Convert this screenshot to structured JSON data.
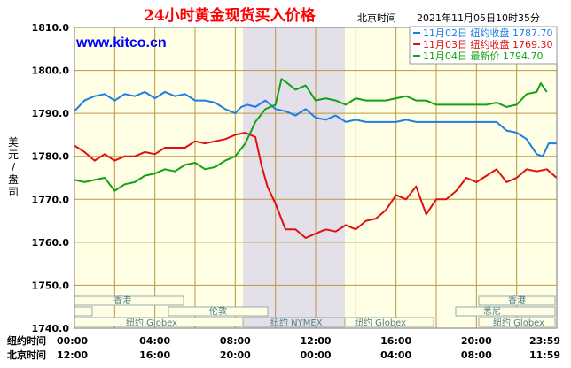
{
  "title": "24小时黄金现货买入价格",
  "timezone_label": "北京时间",
  "timestamp": "2021年11月05日10时35分",
  "website": "www.kitco.cn",
  "ylabel": "美元/盎司",
  "row_labels": {
    "ny": "纽约时间",
    "bj": "北京时间"
  },
  "sessions": {
    "hongkong": "香港",
    "london": "伦敦",
    "sydney": "悉尼",
    "globex": "纽约 Globex",
    "nymex": "纽约 NYMEX"
  },
  "chart_data": {
    "type": "line",
    "ylim": [
      1740,
      1810
    ],
    "yticks": [
      "1810.0",
      "1800.0",
      "1790.0",
      "1780.0",
      "1770.0",
      "1760.0",
      "1750.0",
      "1740.0"
    ],
    "xticks_ny": [
      "00:00",
      "04:00",
      "08:00",
      "12:00",
      "16:00",
      "20:00",
      "23:59"
    ],
    "xticks_bj": [
      "12:00",
      "16:00",
      "20:00",
      "00:00",
      "04:00",
      "08:00",
      "11:59"
    ],
    "series": [
      {
        "name": "11月02日",
        "label": "纽约收盘",
        "value": "1787.70",
        "color": "#1e7ee6",
        "points": [
          [
            0,
            1790.5
          ],
          [
            0.5,
            1793
          ],
          [
            1,
            1794
          ],
          [
            1.5,
            1794.5
          ],
          [
            2,
            1793
          ],
          [
            2.5,
            1794.5
          ],
          [
            3,
            1794
          ],
          [
            3.5,
            1795
          ],
          [
            4,
            1793.5
          ],
          [
            4.5,
            1795
          ],
          [
            5,
            1794
          ],
          [
            5.5,
            1794.5
          ],
          [
            6,
            1793
          ],
          [
            6.5,
            1793
          ],
          [
            7,
            1792.5
          ],
          [
            7.5,
            1791
          ],
          [
            8,
            1790
          ],
          [
            8.3,
            1791.5
          ],
          [
            8.6,
            1792
          ],
          [
            9,
            1791.5
          ],
          [
            9.5,
            1793
          ],
          [
            10,
            1791
          ],
          [
            10.5,
            1790.5
          ],
          [
            11,
            1789.5
          ],
          [
            11.5,
            1791
          ],
          [
            12,
            1789
          ],
          [
            12.5,
            1788.5
          ],
          [
            13,
            1789.5
          ],
          [
            13.5,
            1788
          ],
          [
            14,
            1788.5
          ],
          [
            14.5,
            1788
          ],
          [
            15,
            1788
          ],
          [
            15.5,
            1788
          ],
          [
            16,
            1788
          ],
          [
            16.5,
            1788.5
          ],
          [
            17,
            1788
          ],
          [
            17.5,
            1788
          ],
          [
            18,
            1788
          ],
          [
            18.5,
            1788
          ],
          [
            19,
            1788
          ],
          [
            19.5,
            1788
          ],
          [
            20,
            1788
          ],
          [
            20.5,
            1788
          ],
          [
            21,
            1788
          ],
          [
            21.5,
            1786
          ],
          [
            22,
            1785.5
          ],
          [
            22.5,
            1784
          ],
          [
            23,
            1780.5
          ],
          [
            23.3,
            1780
          ],
          [
            23.6,
            1783
          ],
          [
            23.99,
            1783
          ]
        ]
      },
      {
        "name": "11月03日",
        "label": "纽约收盘",
        "value": "1769.30",
        "color": "#e10f0f",
        "points": [
          [
            0,
            1782.5
          ],
          [
            0.5,
            1781
          ],
          [
            1,
            1779
          ],
          [
            1.5,
            1780.5
          ],
          [
            2,
            1779
          ],
          [
            2.5,
            1780
          ],
          [
            3,
            1780
          ],
          [
            3.5,
            1781
          ],
          [
            4,
            1780.5
          ],
          [
            4.5,
            1782
          ],
          [
            5,
            1782
          ],
          [
            5.5,
            1782
          ],
          [
            6,
            1783.5
          ],
          [
            6.5,
            1783
          ],
          [
            7,
            1783.5
          ],
          [
            7.5,
            1784
          ],
          [
            8,
            1785
          ],
          [
            8.5,
            1785.5
          ],
          [
            9,
            1784.5
          ],
          [
            9.3,
            1778
          ],
          [
            9.6,
            1773
          ],
          [
            10,
            1769
          ],
          [
            10.5,
            1763
          ],
          [
            11,
            1763
          ],
          [
            11.5,
            1761
          ],
          [
            12,
            1762
          ],
          [
            12.5,
            1763
          ],
          [
            13,
            1762.5
          ],
          [
            13.5,
            1764
          ],
          [
            14,
            1763
          ],
          [
            14.5,
            1765
          ],
          [
            15,
            1765.5
          ],
          [
            15.5,
            1767.5
          ],
          [
            16,
            1771
          ],
          [
            16.5,
            1770
          ],
          [
            17,
            1773
          ],
          [
            17.5,
            1766.5
          ],
          [
            18,
            1770
          ],
          [
            18.5,
            1770
          ],
          [
            19,
            1772
          ],
          [
            19.5,
            1775
          ],
          [
            20,
            1774
          ],
          [
            20.5,
            1775.5
          ],
          [
            21,
            1777
          ],
          [
            21.5,
            1774
          ],
          [
            22,
            1775
          ],
          [
            22.5,
            1777
          ],
          [
            23,
            1776.5
          ],
          [
            23.5,
            1777
          ],
          [
            23.99,
            1775
          ]
        ]
      },
      {
        "name": "11月04日",
        "label": "最新价",
        "value": "1794.70",
        "color": "#15a115",
        "points": [
          [
            0,
            1774.5
          ],
          [
            0.5,
            1774
          ],
          [
            1,
            1774.5
          ],
          [
            1.5,
            1775
          ],
          [
            2,
            1772
          ],
          [
            2.5,
            1773.5
          ],
          [
            3,
            1774
          ],
          [
            3.5,
            1775.5
          ],
          [
            4,
            1776
          ],
          [
            4.5,
            1777
          ],
          [
            5,
            1776.5
          ],
          [
            5.5,
            1778
          ],
          [
            6,
            1778.5
          ],
          [
            6.5,
            1777
          ],
          [
            7,
            1777.5
          ],
          [
            7.5,
            1779
          ],
          [
            8,
            1780
          ],
          [
            8.5,
            1783
          ],
          [
            9,
            1788
          ],
          [
            9.5,
            1791
          ],
          [
            10,
            1792
          ],
          [
            10.3,
            1798
          ],
          [
            10.6,
            1797
          ],
          [
            11,
            1795.5
          ],
          [
            11.5,
            1796.5
          ],
          [
            12,
            1793
          ],
          [
            12.5,
            1793.5
          ],
          [
            13,
            1793
          ],
          [
            13.5,
            1792
          ],
          [
            14,
            1793.5
          ],
          [
            14.5,
            1793
          ],
          [
            15,
            1793
          ],
          [
            15.5,
            1793
          ],
          [
            16,
            1793.5
          ],
          [
            16.5,
            1794
          ],
          [
            17,
            1793
          ],
          [
            17.5,
            1793
          ],
          [
            18,
            1792
          ],
          [
            18.5,
            1792
          ],
          [
            19,
            1792
          ],
          [
            19.5,
            1792
          ],
          [
            20,
            1792
          ],
          [
            20.5,
            1792
          ],
          [
            21,
            1792.5
          ],
          [
            21.5,
            1791.5
          ],
          [
            22,
            1792
          ],
          [
            22.5,
            1794.5
          ],
          [
            23,
            1795
          ],
          [
            23.2,
            1797
          ],
          [
            23.5,
            1795
          ]
        ]
      }
    ]
  }
}
